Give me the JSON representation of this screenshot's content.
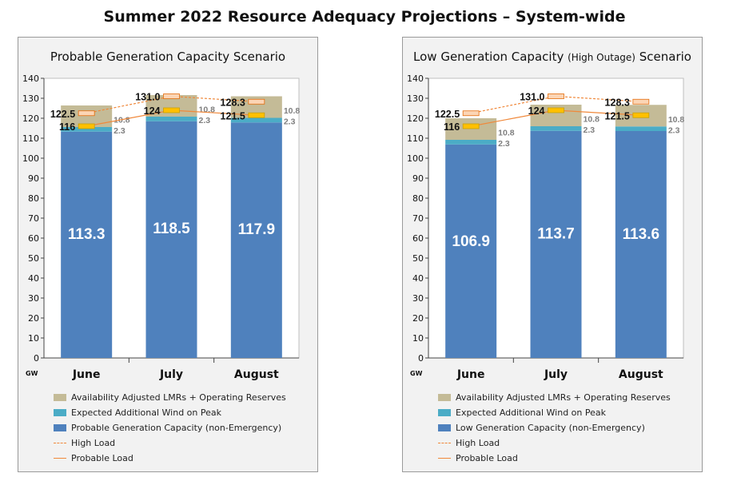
{
  "title": "Summer 2022 Resource Adequacy Projections – System-wide",
  "colors": {
    "lmr": "#c4bb97",
    "wind": "#4bacc6",
    "gen": "#4f81bd",
    "load": "#f0883a",
    "high_marker": "#f79646",
    "probable_marker": "#ffc000"
  },
  "chart_data": [
    {
      "type": "bar",
      "title": "Probable Generation Capacity Scenario",
      "title_suffix": "",
      "ylabel": "GW",
      "ylim": [
        0,
        140
      ],
      "ytick_step": 10,
      "categories": [
        "June",
        "July",
        "August"
      ],
      "series": [
        {
          "name": "Probable Generation Capacity (non-Emergency)",
          "values": [
            113.3,
            118.5,
            117.9
          ],
          "labels": [
            "113.3",
            "118.5",
            "117.9"
          ]
        },
        {
          "name": "Expected Additional Wind on Peak",
          "values": [
            2.3,
            2.3,
            2.3
          ],
          "labels": [
            "2.3",
            "2.3",
            "2.3"
          ]
        },
        {
          "name": "Availability Adjusted LMRs + Operating Reserves",
          "values": [
            10.8,
            10.8,
            10.8
          ],
          "labels": [
            "10.8",
            "10.8",
            "10.8"
          ]
        }
      ],
      "lines": [
        {
          "name": "High Load",
          "values": [
            122.5,
            131.0,
            128.3
          ],
          "labels": [
            "122.5",
            "131.0",
            "128.3"
          ]
        },
        {
          "name": "Probable Load",
          "values": [
            116,
            124,
            121.5
          ],
          "labels": [
            "116",
            "124",
            "121.5"
          ]
        }
      ]
    },
    {
      "type": "bar",
      "title": "Low Generation Capacity",
      "title_suffix": "(High Outage)",
      "title_end": "Scenario",
      "ylabel": "GW",
      "ylim": [
        0,
        140
      ],
      "ytick_step": 10,
      "categories": [
        "June",
        "July",
        "August"
      ],
      "series": [
        {
          "name": "Low Generation Capacity (non-Emergency)",
          "values": [
            106.9,
            113.7,
            113.6
          ],
          "labels": [
            "106.9",
            "113.7",
            "113.6"
          ]
        },
        {
          "name": "Expected Additional Wind on Peak",
          "values": [
            2.3,
            2.3,
            2.3
          ],
          "labels": [
            "2.3",
            "2.3",
            "2.3"
          ]
        },
        {
          "name": "Availability Adjusted LMRs + Operating Reserves",
          "values": [
            10.8,
            10.8,
            10.8
          ],
          "labels": [
            "10.8",
            "10.8",
            "10.8"
          ]
        }
      ],
      "lines": [
        {
          "name": "High Load",
          "values": [
            122.5,
            131.0,
            128.3
          ],
          "labels": [
            "122.5",
            "131.0",
            "128.3"
          ]
        },
        {
          "name": "Probable Load",
          "values": [
            116,
            124,
            121.5
          ],
          "labels": [
            "116",
            "124",
            "121.5"
          ]
        }
      ]
    }
  ]
}
